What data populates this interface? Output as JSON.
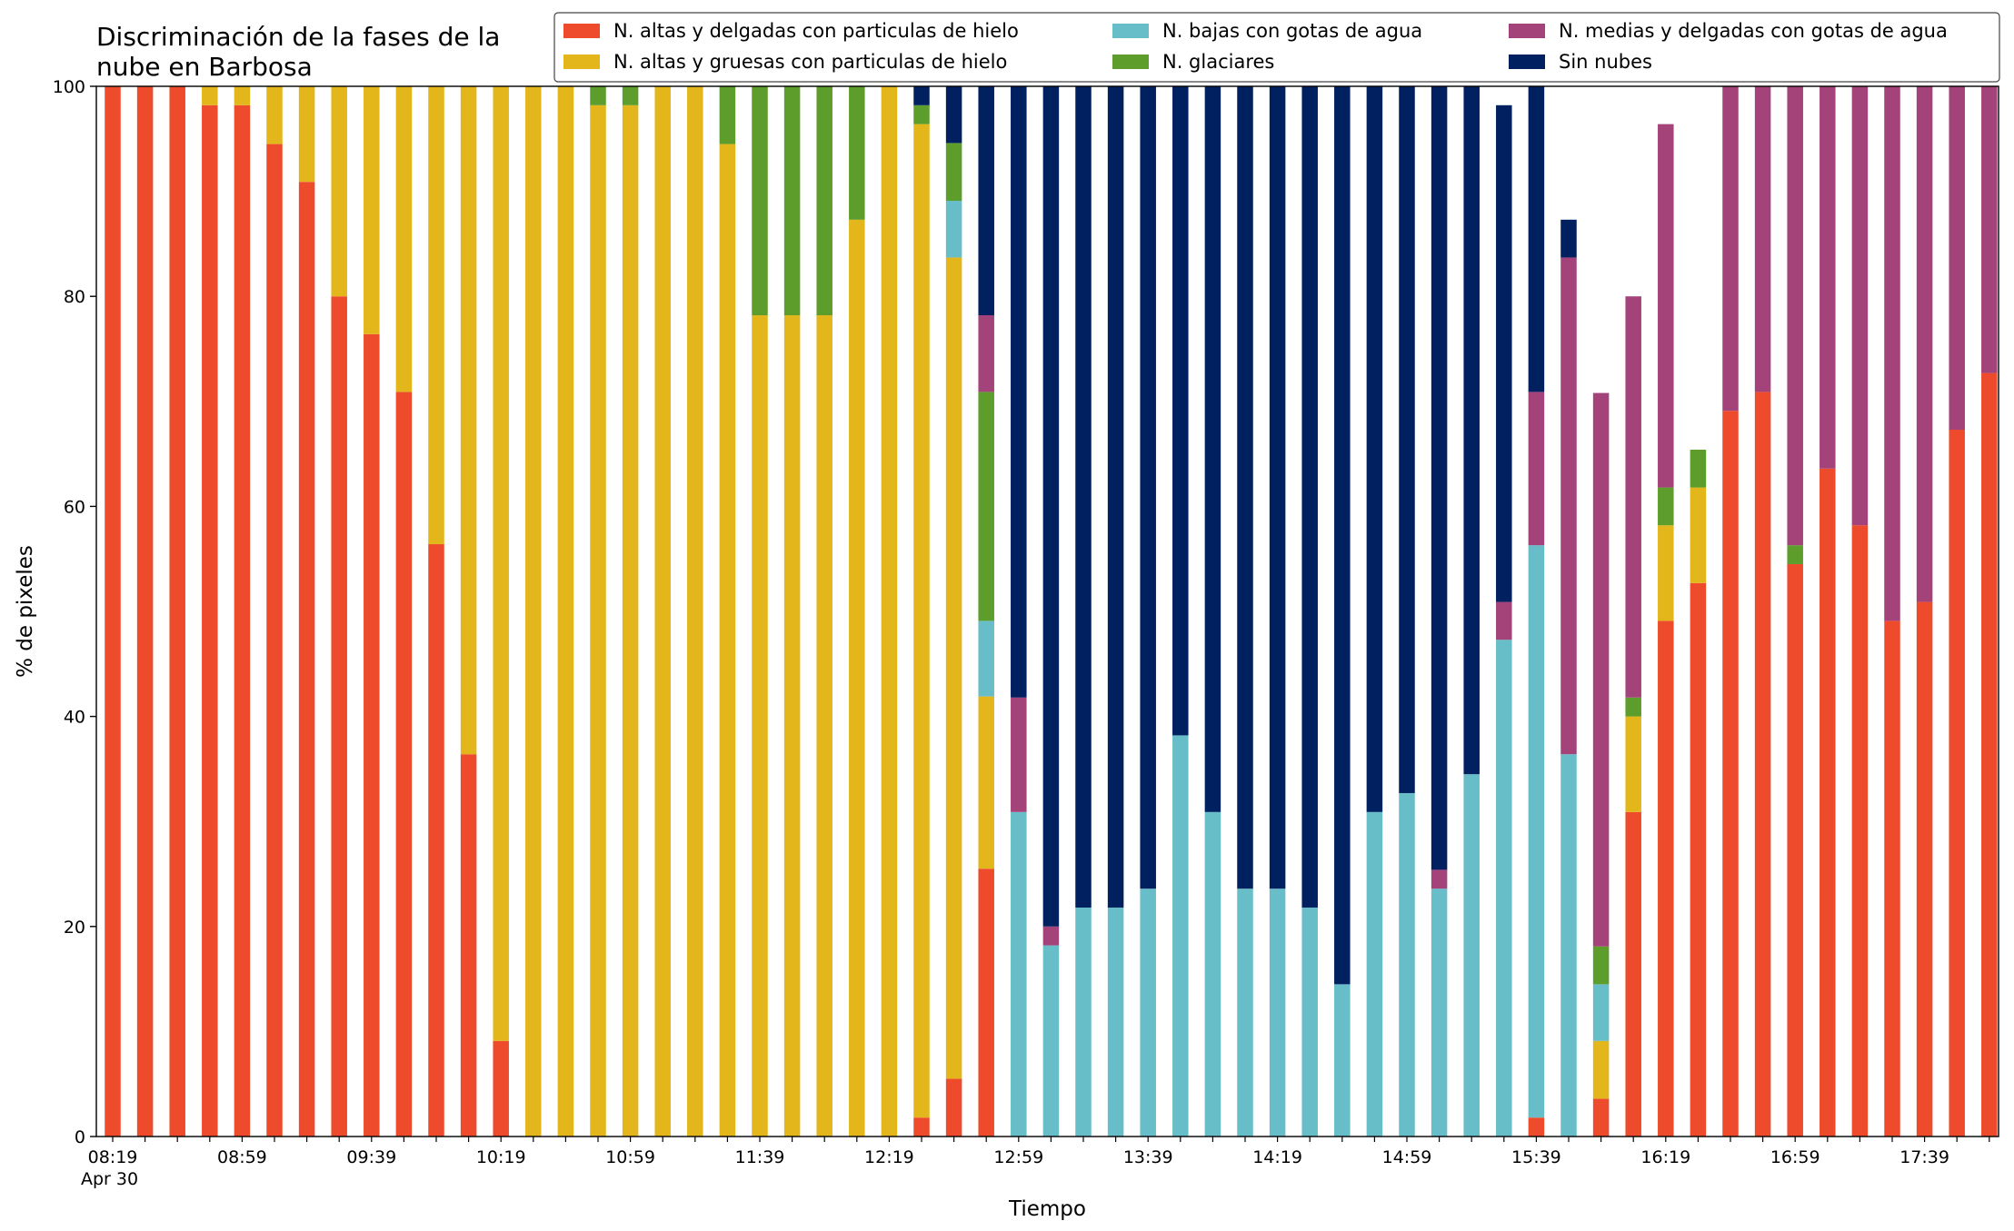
{
  "chart_data": {
    "type": "bar",
    "stacked": true,
    "title_lines": [
      "Discriminación de la fases de la",
      "nube en Barbosa"
    ],
    "xlabel": "Tiempo",
    "ylabel": "% de pixeles",
    "ylim": [
      0,
      100
    ],
    "y_ticks": [
      0,
      20,
      40,
      60,
      80,
      100
    ],
    "x_tick_labels": [
      "08:19",
      "08:59",
      "09:39",
      "10:19",
      "10:59",
      "11:39",
      "12:19",
      "12:59",
      "13:39",
      "14:19",
      "14:59",
      "15:39",
      "16:19",
      "16:59",
      "17:39"
    ],
    "x_date_label": "Apr 30",
    "grid": false,
    "legend_position": "top-right",
    "legend_columns": 3,
    "series": [
      {
        "name": "N. altas y delgadas con particulas de hielo",
        "color": "#ed4b2b",
        "values": [
          100,
          100,
          100,
          98.2,
          98.2,
          94.5,
          90.9,
          80,
          76.4,
          70.9,
          56.4,
          36.4,
          9.1,
          0,
          0,
          0,
          0,
          0,
          0,
          0,
          0,
          0,
          0,
          0,
          0,
          1.8,
          5.5,
          25.5,
          0,
          0,
          0,
          0,
          0,
          0,
          0,
          0,
          0,
          0,
          0,
          0,
          0,
          0,
          0,
          0,
          1.8,
          0,
          3.6,
          30.9,
          49.1,
          52.7,
          69.1,
          70.9,
          54.5,
          63.6,
          58.2,
          49.1,
          50.9,
          67.3,
          72.7
        ]
      },
      {
        "name": "N. altas y gruesas con particulas de hielo",
        "color": "#e3b61c",
        "values": [
          0,
          0,
          0,
          1.8,
          1.8,
          5.5,
          9.1,
          20,
          23.6,
          29.1,
          43.6,
          63.6,
          90.9,
          100,
          100,
          98.2,
          98.2,
          100,
          100,
          94.5,
          78.2,
          78.2,
          78.2,
          87.3,
          100,
          94.6,
          78.2,
          16.4,
          0,
          0,
          0,
          0,
          0,
          0,
          0,
          0,
          0,
          0,
          0,
          0,
          0,
          0,
          0,
          0,
          0,
          0,
          5.5,
          9.1,
          9.1,
          9.1,
          0,
          0,
          0,
          0,
          0,
          0,
          0,
          0,
          0
        ]
      },
      {
        "name": "N. bajas con gotas de agua",
        "color": "#67bdc8",
        "values": [
          0,
          0,
          0,
          0,
          0,
          0,
          0,
          0,
          0,
          0,
          0,
          0,
          0,
          0,
          0,
          0,
          0,
          0,
          0,
          0,
          0,
          0,
          0,
          0,
          0,
          0,
          5.4,
          7.2,
          30.9,
          18.2,
          21.8,
          21.8,
          23.6,
          38.2,
          30.9,
          23.6,
          23.6,
          21.8,
          14.5,
          30.9,
          32.7,
          23.6,
          34.5,
          47.3,
          54.5,
          36.4,
          5.4,
          0,
          0,
          0,
          0,
          0,
          0,
          0,
          0,
          0,
          0,
          0,
          0
        ]
      },
      {
        "name": "N. glaciares",
        "color": "#5d9d2c",
        "values": [
          0,
          0,
          0,
          0,
          0,
          0,
          0,
          0,
          0,
          0,
          0,
          0,
          0,
          0,
          0,
          1.8,
          1.8,
          0,
          0,
          5.5,
          21.8,
          21.8,
          21.8,
          12.7,
          0,
          1.8,
          5.5,
          21.8,
          0,
          0,
          0,
          0,
          0,
          0,
          0,
          0,
          0,
          0,
          0,
          0,
          0,
          0,
          0,
          0,
          0,
          0,
          3.6,
          1.8,
          3.6,
          3.6,
          0,
          0,
          1.8,
          0,
          0,
          0,
          0,
          0,
          0
        ]
      },
      {
        "name": "N. medias y delgadas con gotas de agua",
        "color": "#a4437a",
        "values": [
          0,
          0,
          0,
          0,
          0,
          0,
          0,
          0,
          0,
          0,
          0,
          0,
          0,
          0,
          0,
          0,
          0,
          0,
          0,
          0,
          0,
          0,
          0,
          0,
          0,
          0,
          0,
          7.3,
          10.9,
          1.8,
          0,
          0,
          0,
          0,
          0,
          0,
          0,
          0,
          0,
          0,
          0,
          1.8,
          0,
          3.6,
          14.6,
          47.3,
          52.7,
          38.2,
          34.6,
          0,
          30.9,
          29.1,
          43.7,
          36.4,
          41.8,
          50.9,
          49.1,
          32.7,
          27.3
        ]
      },
      {
        "name": "Sin nubes",
        "color": "#00205f",
        "values": [
          0,
          0,
          0,
          0,
          0,
          0,
          0,
          0,
          0,
          0,
          0,
          0,
          0,
          0,
          0,
          0,
          0,
          0,
          0,
          0,
          0,
          0,
          0,
          0,
          0,
          3.6,
          5.4,
          21.8,
          58.2,
          80,
          78.2,
          78.2,
          76.4,
          61.8,
          69.1,
          76.4,
          76.4,
          78.2,
          85.5,
          69.1,
          67.3,
          74.6,
          65.5,
          47.3,
          30.9,
          3.6,
          0,
          0,
          0,
          0,
          0,
          0,
          0,
          0,
          0,
          0,
          0,
          0,
          0
        ]
      }
    ]
  }
}
